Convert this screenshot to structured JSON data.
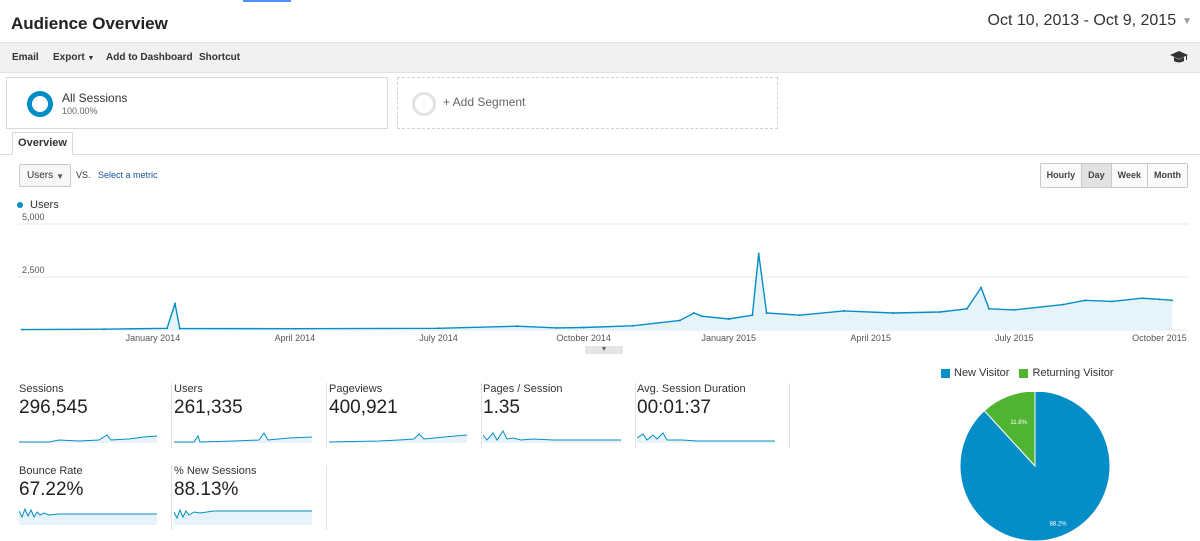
{
  "header": {
    "title": "Audience Overview",
    "date_range": "Oct 10, 2013 - Oct 9, 2015"
  },
  "toolbar": {
    "email": "Email",
    "export": "Export",
    "add_to_dashboard": "Add to Dashboard",
    "shortcut": "Shortcut",
    "cap_icon": "graduation-cap-icon"
  },
  "segments": {
    "all_sessions": {
      "name": "All Sessions",
      "pct": "100.00%"
    },
    "add_segment": "+ Add Segment"
  },
  "tabs": {
    "overview": "Overview"
  },
  "controls": {
    "metric": "Users",
    "vs": "VS.",
    "select_metric": "Select a metric",
    "granularity": [
      "Hourly",
      "Day",
      "Week",
      "Month"
    ],
    "active_granularity": "Day"
  },
  "colors": {
    "accent": "#058dc7",
    "fill": "#e6f4fa",
    "new_visitor": "#058dc7",
    "returning_visitor": "#50b432"
  },
  "chart_data": [
    {
      "type": "area",
      "series": [
        {
          "name": "Users",
          "points": [
            [
              "2013-10-10",
              20
            ],
            [
              "2013-12-01",
              40
            ],
            [
              "2014-01-10",
              80
            ],
            [
              "2014-01-15",
              1250
            ],
            [
              "2014-01-18",
              70
            ],
            [
              "2014-04-01",
              60
            ],
            [
              "2014-07-01",
              80
            ],
            [
              "2014-08-20",
              180
            ],
            [
              "2014-09-14",
              100
            ],
            [
              "2014-10-01",
              120
            ],
            [
              "2014-11-01",
              200
            ],
            [
              "2014-12-01",
              450
            ],
            [
              "2014-12-10",
              800
            ],
            [
              "2014-12-15",
              650
            ],
            [
              "2015-01-01",
              520
            ],
            [
              "2015-01-16",
              700
            ],
            [
              "2015-01-20",
              3600
            ],
            [
              "2015-01-25",
              800
            ],
            [
              "2015-02-15",
              700
            ],
            [
              "2015-03-15",
              900
            ],
            [
              "2015-04-15",
              800
            ],
            [
              "2015-05-15",
              850
            ],
            [
              "2015-06-01",
              1000
            ],
            [
              "2015-06-10",
              2000
            ],
            [
              "2015-06-15",
              1000
            ],
            [
              "2015-07-01",
              950
            ],
            [
              "2015-08-01",
              1200
            ],
            [
              "2015-08-15",
              1400
            ],
            [
              "2015-09-01",
              1350
            ],
            [
              "2015-09-20",
              1500
            ],
            [
              "2015-10-01",
              1450
            ],
            [
              "2015-10-09",
              1400
            ]
          ]
        }
      ],
      "x_ticks": [
        "January 2014",
        "April 2014",
        "July 2014",
        "October 2014",
        "January 2015",
        "April 2015",
        "July 2015",
        "October 2015"
      ],
      "y_ticks": [
        "2,500",
        "5,000"
      ],
      "ylim": [
        0,
        5000
      ],
      "grid": true,
      "legend": "top-left"
    },
    {
      "type": "pie",
      "labels": [
        "New Visitor",
        "Returning Visitor"
      ],
      "values": [
        88.2,
        11.8
      ],
      "data_labels": [
        "88.2%",
        "11.8%"
      ],
      "legend": "top"
    }
  ],
  "metrics": [
    {
      "label": "Sessions",
      "value": "296,545"
    },
    {
      "label": "Users",
      "value": "261,335"
    },
    {
      "label": "Pageviews",
      "value": "400,921"
    },
    {
      "label": "Pages / Session",
      "value": "1.35"
    },
    {
      "label": "Avg. Session Duration",
      "value": "00:01:37"
    },
    {
      "label": "Bounce Rate",
      "value": "67.22%"
    },
    {
      "label": "% New Sessions",
      "value": "88.13%"
    }
  ]
}
